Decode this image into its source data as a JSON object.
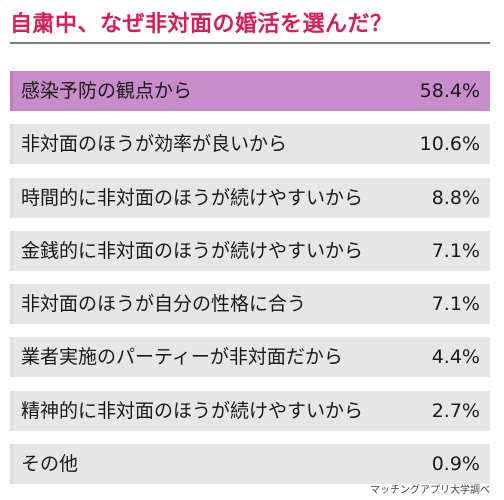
{
  "title": "自粛中、なぜ非対面の婚活を選んだ？",
  "source": "マッチングアプリ大学調べ",
  "colors": {
    "title": "#d71e57",
    "highlight_bar": "#c98ccb",
    "row_background": "#e6e6e6"
  },
  "chart_data": {
    "type": "bar",
    "orientation": "horizontal",
    "title": "自粛中、なぜ非対面の婚活を選んだ？",
    "unit": "%",
    "xlim": [
      0,
      58.4
    ],
    "grid": false,
    "highlight_index": 0,
    "categories": [
      "感染予防の観点から",
      "非対面のほうが効率が良いから",
      "時間的に非対面のほうが続けやすいから",
      "金銭的に非対面のほうが続けやすいから",
      "非対面のほうが自分の性格に合う",
      "業者実施のパーティーが非対面だから",
      "精神的に非対面のほうが続けやすいから",
      "その他"
    ],
    "values": [
      58.4,
      10.6,
      8.8,
      7.1,
      7.1,
      4.4,
      2.7,
      0.9
    ],
    "value_labels": [
      "58.4%",
      "10.6%",
      "8.8%",
      "7.1%",
      "7.1%",
      "4.4%",
      "2.7%",
      "0.9%"
    ]
  }
}
